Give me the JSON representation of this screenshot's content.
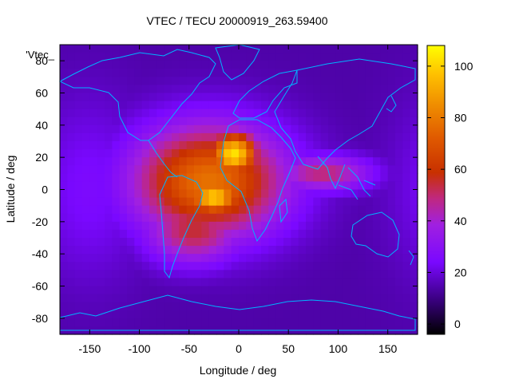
{
  "chart_data": {
    "type": "heatmap",
    "title": "VTEC / TECU 20000919_263.59400",
    "xlabel": "Longitude / deg",
    "ylabel": "Latitude / deg",
    "legend_label": "'Vtec_",
    "xlim": [
      -180,
      180
    ],
    "ylim": [
      -90,
      90
    ],
    "x_ticks": [
      -150,
      -100,
      -50,
      0,
      50,
      100,
      150
    ],
    "y_ticks": [
      -80,
      -60,
      -40,
      -20,
      0,
      20,
      40,
      60,
      80
    ],
    "colorbar": {
      "range": [
        -4,
        108
      ],
      "ticks": [
        0,
        20,
        40,
        60,
        80,
        100
      ],
      "palette": [
        {
          "v": 0,
          "color": "#000000"
        },
        {
          "v": 0.12,
          "color": "#3a0080"
        },
        {
          "v": 0.25,
          "color": "#7a08ff"
        },
        {
          "v": 0.38,
          "color": "#a020e0"
        },
        {
          "v": 0.47,
          "color": "#c02880"
        },
        {
          "v": 0.56,
          "color": "#c83000"
        },
        {
          "v": 0.68,
          "color": "#e05a00"
        },
        {
          "v": 0.8,
          "color": "#f09000"
        },
        {
          "v": 0.9,
          "color": "#ffc000"
        },
        {
          "v": 1.0,
          "color": "#ffff00"
        }
      ]
    },
    "features": [
      {
        "name": "southern-peak",
        "lon": -25,
        "lat": -5,
        "value": 100,
        "sx": 20,
        "sy": 8
      },
      {
        "name": "northern-peak",
        "lon": -5,
        "lat": 22,
        "value": 103,
        "sx": 18,
        "sy": 10
      },
      {
        "name": "main-anomaly",
        "lon": -30,
        "lat": 5,
        "value": 78,
        "sx": 55,
        "sy": 25
      },
      {
        "name": "southern-arm",
        "lon": -45,
        "lat": -25,
        "value": 55,
        "sx": 35,
        "sy": 15
      },
      {
        "name": "indian-ocean-tail",
        "lon": 85,
        "lat": 10,
        "value": 50,
        "sx": 35,
        "sy": 8
      },
      {
        "name": "pacific-background",
        "lon": -150,
        "lat": 0,
        "value": 25,
        "sx": 40,
        "sy": 40
      }
    ],
    "background_value": 14
  }
}
